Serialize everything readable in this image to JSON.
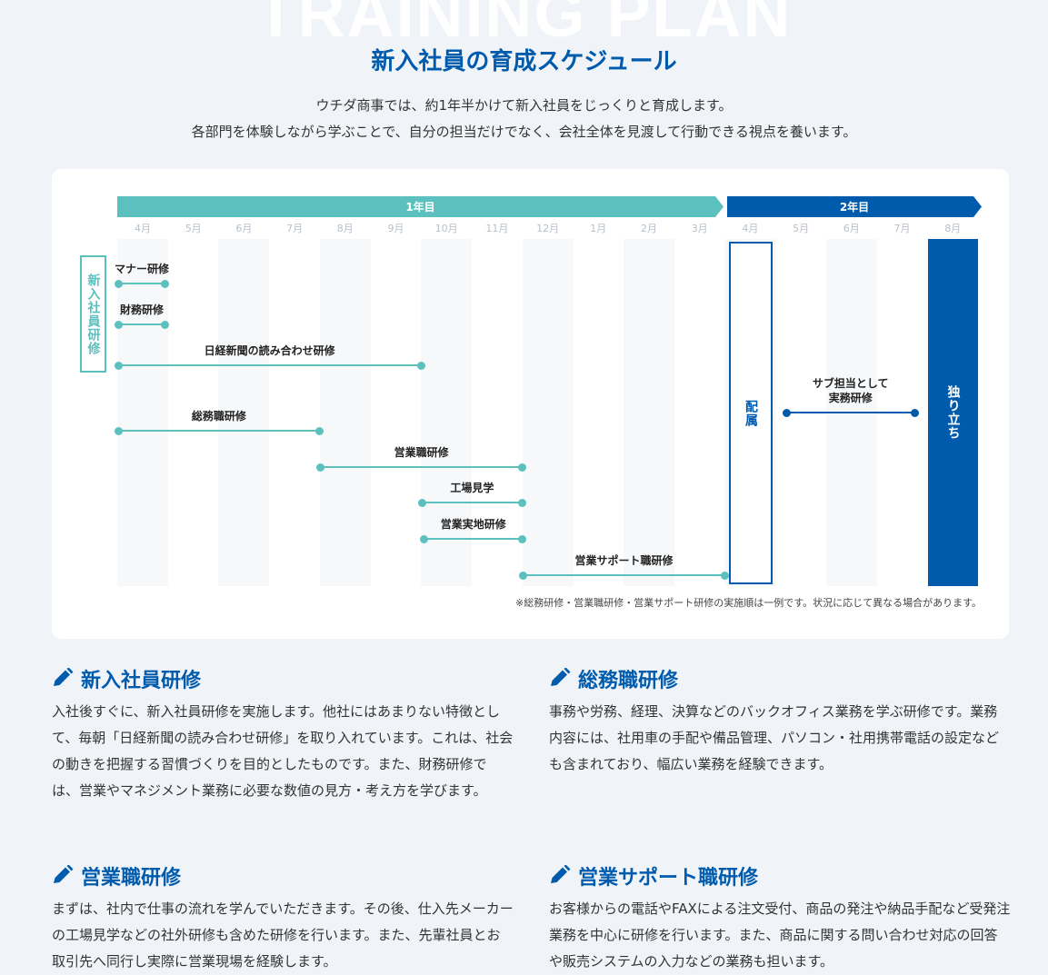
{
  "header": {
    "bg_title": "TRAINING PLAN",
    "title": "新入社員の育成スケジュール",
    "lead_1": "ウチダ商事では、約1年半かけて新入社員をじっくりと育成します。",
    "lead_2": "各部門を体験しながら学ぶことで、自分の担当だけでなく、会社全体を見渡して行動できる視点を養います。"
  },
  "schedule": {
    "year1": "1年目",
    "year2": "2年目",
    "months": [
      "4月",
      "5月",
      "6月",
      "7月",
      "8月",
      "9月",
      "10月",
      "11月",
      "12月",
      "1月",
      "2月",
      "3月",
      "4月",
      "5月",
      "6月",
      "7月",
      "8月"
    ],
    "group_label": "新入社員研修",
    "events": [
      {
        "label": "マナー研修",
        "start": 0,
        "end": 0.95,
        "row": 312,
        "color": "#5bc0be"
      },
      {
        "label": "財務研修",
        "start": 0,
        "end": 0.95,
        "row": 357,
        "color": "#5bc0be"
      },
      {
        "label": "日経新聞の読み合わせ研修",
        "start": 0,
        "end": 6,
        "row": 402,
        "color": "#5bc0be"
      },
      {
        "label": "総務職研修",
        "start": 0,
        "end": 4,
        "row": 474,
        "color": "#5bc0be"
      },
      {
        "label": "営業職研修",
        "start": 4,
        "end": 8,
        "row": 514,
        "color": "#5bc0be"
      },
      {
        "label": "工場見学",
        "start": 6,
        "end": 8,
        "row": 553,
        "color": "#5bc0be"
      },
      {
        "label": "営業実地研修",
        "start": 6.05,
        "end": 8,
        "row": 593,
        "color": "#5bc0be"
      },
      {
        "label": "営業サポート職研修",
        "start": 8,
        "end": 12,
        "row": 633,
        "color": "#5bc0be"
      },
      {
        "label": "サブ担当として\n実務研修",
        "start": 13.2,
        "end": 15.75,
        "row": 454,
        "color": "#005bac"
      }
    ],
    "assignment": "配属",
    "independence": "独り立ち",
    "note": "※総務研修・営業職研修・営業サポート研修の実施順は一例です。状況に応じて異なる場合があります。"
  },
  "sections": [
    {
      "title": "新入社員研修",
      "body": "入社後すぐに、新入社員研修を実施します。他社にはあまりない特徴として、毎朝「日経新聞の読み合わせ研修」を取り入れています。これは、社会の動きを把握する習慣づくりを目的としたものです。また、財務研修では、営業やマネジメント業務に必要な数値の見方・考え方を学びます。"
    },
    {
      "title": "総務職研修",
      "body": "事務や労務、経理、決算などのバックオフィス業務を学ぶ研修です。業務内容には、社用車の手配や備品管理、パソコン・社用携帯電話の設定なども含まれており、幅広い業務を経験できます。"
    },
    {
      "title": "営業職研修",
      "body": "まずは、社内で仕事の流れを学んでいただきます。その後、仕入先メーカーの工場見学などの社外研修も含めた研修を行います。また、先輩社員とお取引先へ同行し実際に営業現場を経験します。"
    },
    {
      "title": "営業サポート職研修",
      "body": "お客様からの電話やFAXによる注文受付、商品の発注や納品手配など受発注業務を中心に研修を行います。また、商品に関する問い合わせ対応の回答や販売システムの入力などの業務も担います。"
    }
  ],
  "colors": {
    "brand": "#005bac",
    "teal": "#5bc0be",
    "background": "#f0f4f8"
  },
  "icons": {
    "section": "pencil-icon"
  }
}
